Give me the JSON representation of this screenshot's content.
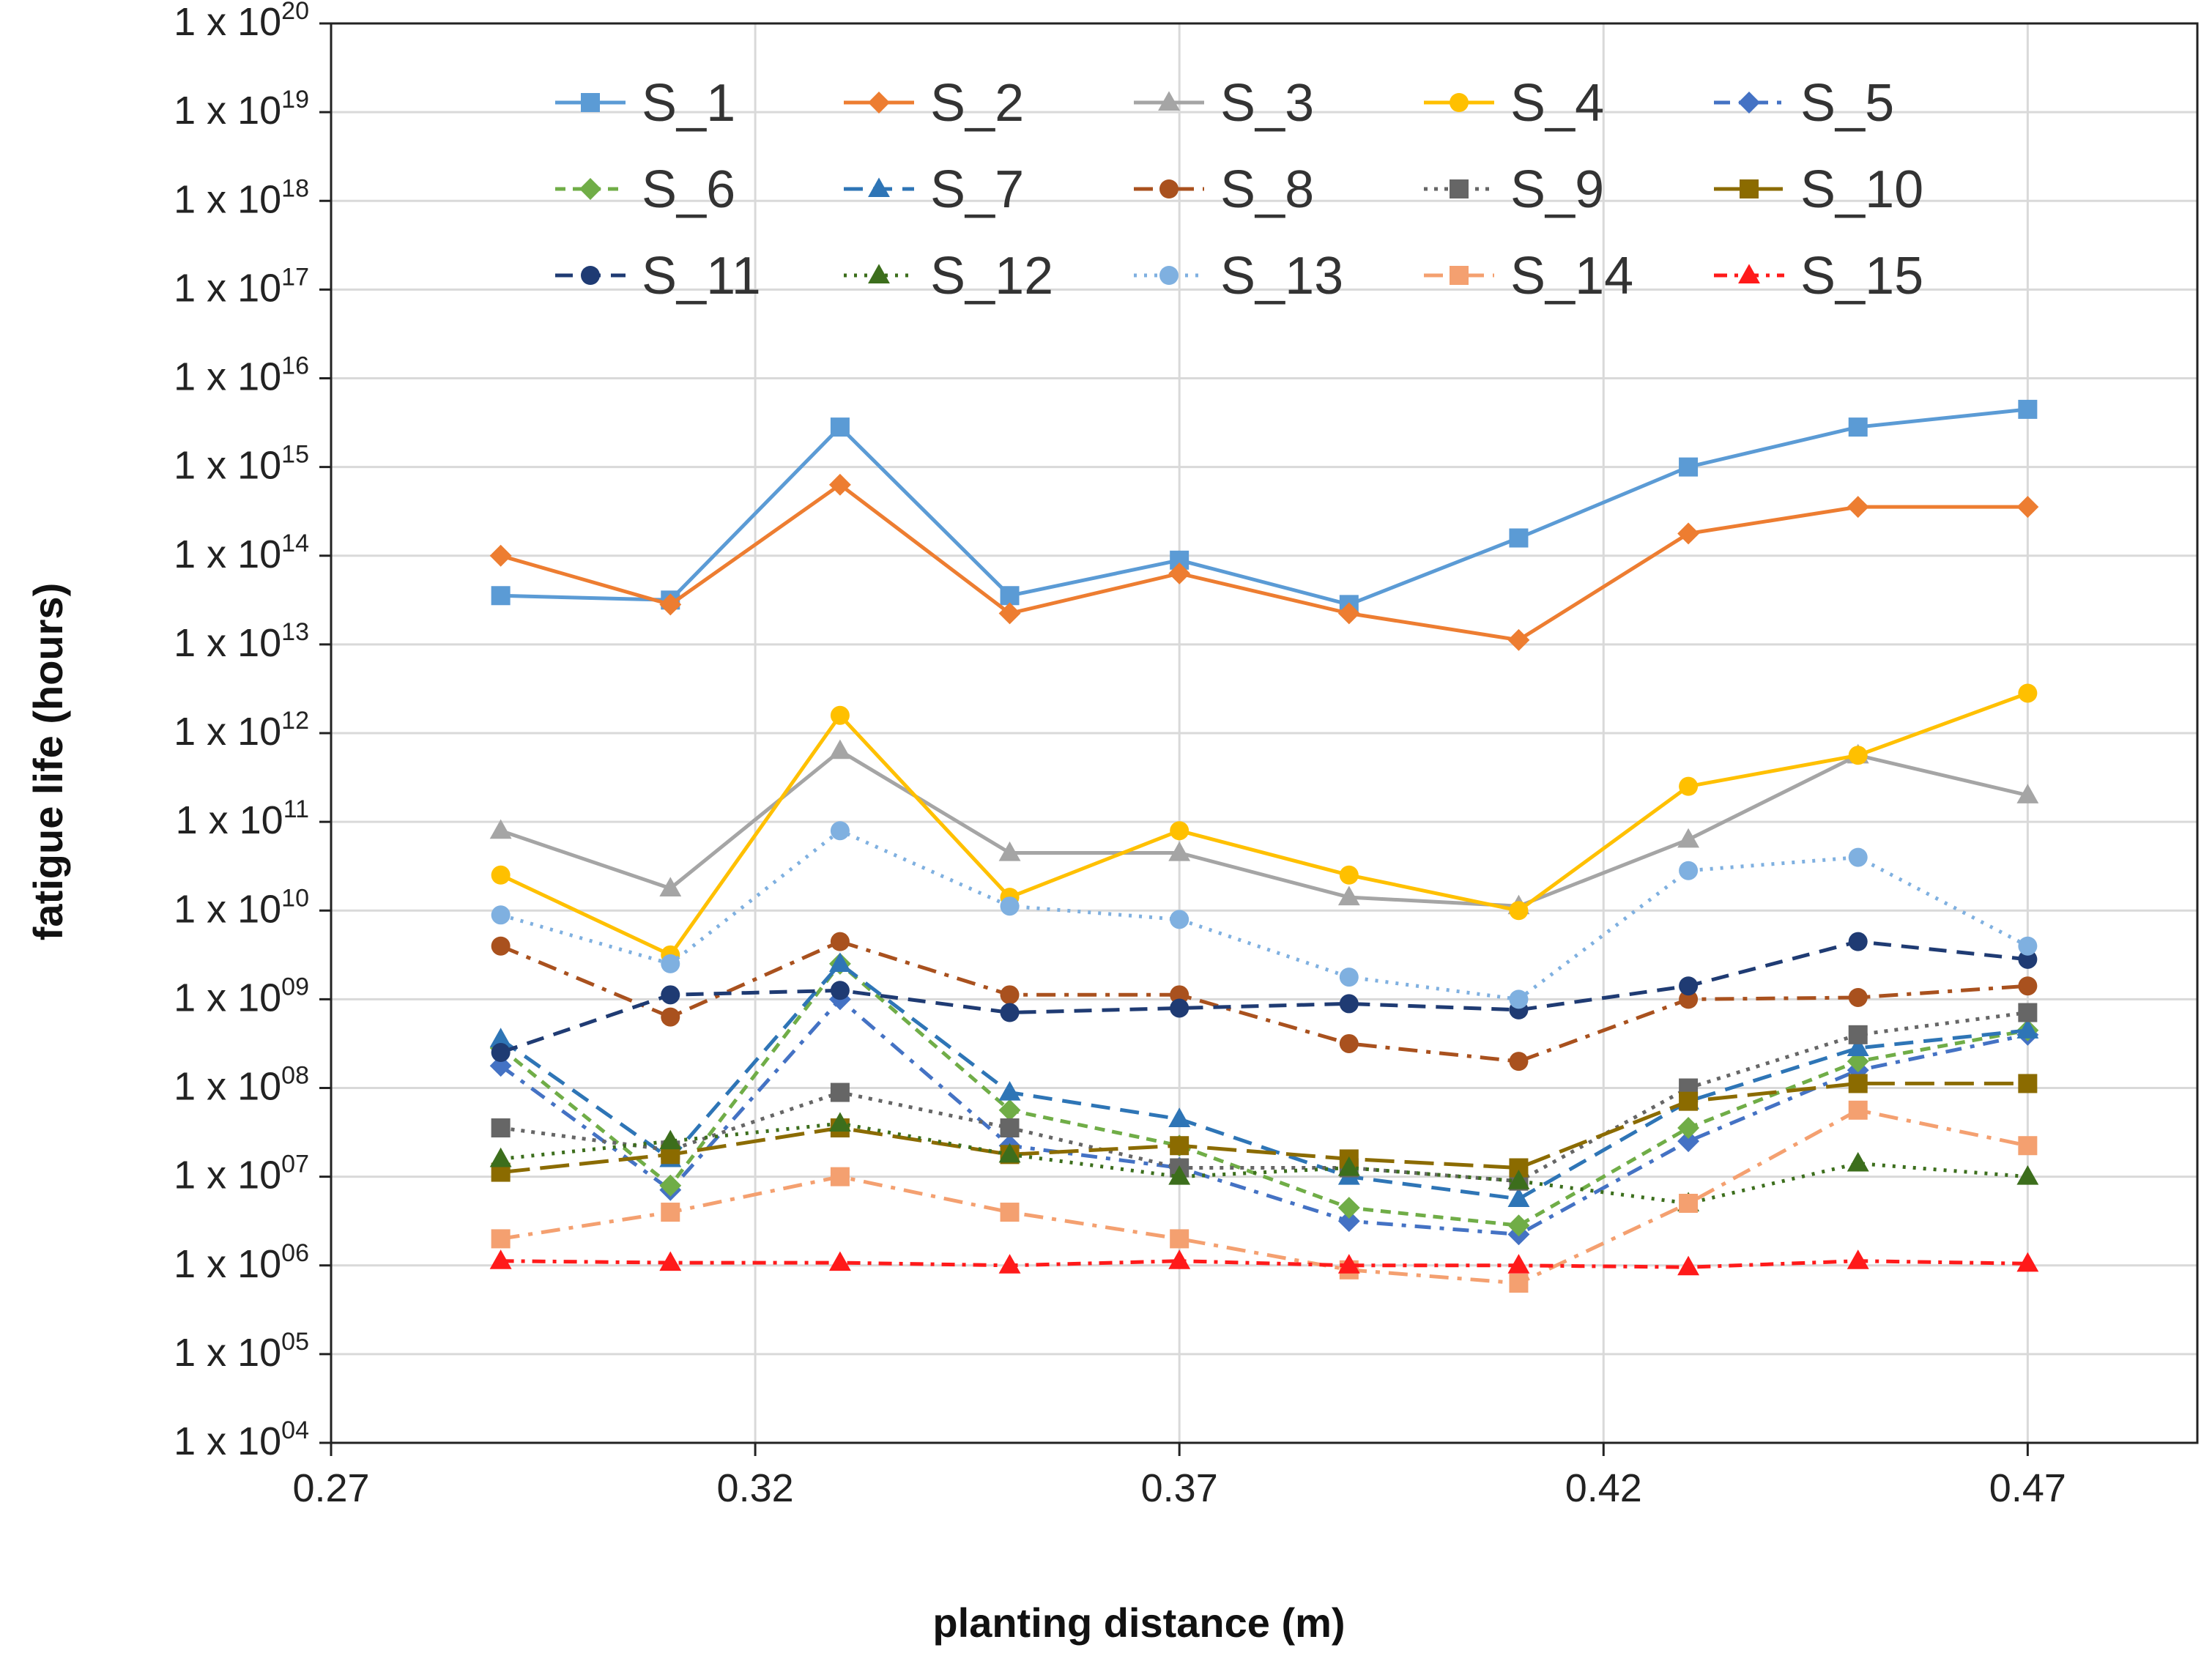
{
  "chart_data": {
    "type": "line",
    "title": "",
    "xlabel": "planting distance (m)",
    "ylabel": "fatigue life (hours)",
    "yscale": "log",
    "xlim": [
      0.27,
      0.49
    ],
    "ylim_exp": [
      4,
      20
    ],
    "x_ticks": [
      "0.27",
      "0.32",
      "0.37",
      "0.42",
      "0.47"
    ],
    "y_tick_prefix": "1 x 10",
    "y_ticks": [
      "04",
      "05",
      "06",
      "07",
      "08",
      "09",
      "10",
      "11",
      "12",
      "13",
      "14",
      "15",
      "16",
      "17",
      "18",
      "19",
      "20"
    ],
    "x": [
      0.29,
      0.31,
      0.33,
      0.35,
      0.37,
      0.39,
      0.41,
      0.43,
      0.45,
      0.47
    ],
    "series_note": "values are log10(hours)",
    "series": [
      {
        "name": "S_1",
        "color": "#5b9bd5",
        "dash": "",
        "marker": "square",
        "log10_values": [
          13.55,
          13.5,
          15.45,
          13.55,
          13.95,
          13.45,
          14.2,
          15.0,
          15.45,
          15.65
        ]
      },
      {
        "name": "S_2",
        "color": "#ed7d31",
        "dash": "",
        "marker": "diamond",
        "log10_values": [
          14.0,
          13.45,
          14.8,
          13.35,
          13.8,
          13.35,
          13.05,
          14.25,
          14.55,
          14.55
        ]
      },
      {
        "name": "S_3",
        "color": "#a5a5a5",
        "dash": "",
        "marker": "triangle",
        "log10_values": [
          10.9,
          10.25,
          11.8,
          10.65,
          10.65,
          10.15,
          10.05,
          10.8,
          11.75,
          11.3
        ]
      },
      {
        "name": "S_4",
        "color": "#ffc000",
        "dash": "",
        "marker": "circle",
        "log10_values": [
          10.4,
          9.5,
          12.2,
          10.15,
          10.9,
          10.4,
          10.0,
          11.4,
          11.75,
          12.45
        ]
      },
      {
        "name": "S_5",
        "color": "#4472c4",
        "dash": "22,12,6,12",
        "marker": "diamond",
        "log10_values": [
          8.25,
          6.85,
          9.0,
          7.35,
          7.1,
          6.5,
          6.35,
          7.4,
          8.2,
          8.6
        ]
      },
      {
        "name": "S_6",
        "color": "#70ad47",
        "dash": "14,10",
        "marker": "diamond",
        "log10_values": [
          8.45,
          6.9,
          9.4,
          7.75,
          7.35,
          6.65,
          6.45,
          7.55,
          8.3,
          8.65
        ]
      },
      {
        "name": "S_7",
        "color": "#2e75b6",
        "dash": "26,14",
        "marker": "triangle",
        "log10_values": [
          8.55,
          7.2,
          9.4,
          7.95,
          7.65,
          7.0,
          6.75,
          7.85,
          8.45,
          8.65
        ]
      },
      {
        "name": "S_8",
        "color": "#a9511e",
        "dash": "26,12,6,12",
        "marker": "circle",
        "log10_values": [
          9.6,
          8.8,
          9.65,
          9.05,
          9.05,
          8.5,
          8.3,
          9.0,
          9.02,
          9.15
        ]
      },
      {
        "name": "S_9",
        "color": "#666666",
        "dash": "5,9",
        "marker": "square",
        "log10_values": [
          7.55,
          7.3,
          7.95,
          7.55,
          7.1,
          7.1,
          6.95,
          8.0,
          8.6,
          8.85
        ]
      },
      {
        "name": "S_10",
        "color": "#8b6b00",
        "dash": "40,14",
        "marker": "square",
        "log10_values": [
          7.05,
          7.25,
          7.55,
          7.25,
          7.35,
          7.2,
          7.1,
          7.85,
          8.05,
          8.05
        ]
      },
      {
        "name": "S_11",
        "color": "#1f3b73",
        "dash": "24,14",
        "marker": "circle",
        "log10_values": [
          8.4,
          9.05,
          9.1,
          8.85,
          8.9,
          8.95,
          8.88,
          9.15,
          9.65,
          9.45
        ]
      },
      {
        "name": "S_12",
        "color": "#3c6e1c",
        "dash": "4,10",
        "marker": "triangle",
        "log10_values": [
          7.2,
          7.4,
          7.6,
          7.25,
          7.0,
          7.1,
          6.95,
          6.7,
          7.15,
          7.0
        ]
      },
      {
        "name": "S_13",
        "color": "#7fb0e0",
        "dash": "4,10",
        "marker": "circle",
        "log10_values": [
          9.95,
          9.4,
          10.9,
          10.05,
          9.9,
          9.25,
          9.0,
          10.45,
          10.6,
          9.6
        ]
      },
      {
        "name": "S_14",
        "color": "#f4a070",
        "dash": "26,12,6,12",
        "marker": "square",
        "log10_values": [
          6.3,
          6.6,
          7.0,
          6.6,
          6.3,
          5.95,
          5.8,
          6.7,
          7.75,
          7.35
        ]
      },
      {
        "name": "S_15",
        "color": "#ff1a1a",
        "dash": "18,10,5,10",
        "marker": "triangle",
        "log10_values": [
          6.05,
          6.03,
          6.03,
          6.0,
          6.05,
          6.0,
          6.0,
          5.98,
          6.05,
          6.02
        ]
      }
    ]
  }
}
